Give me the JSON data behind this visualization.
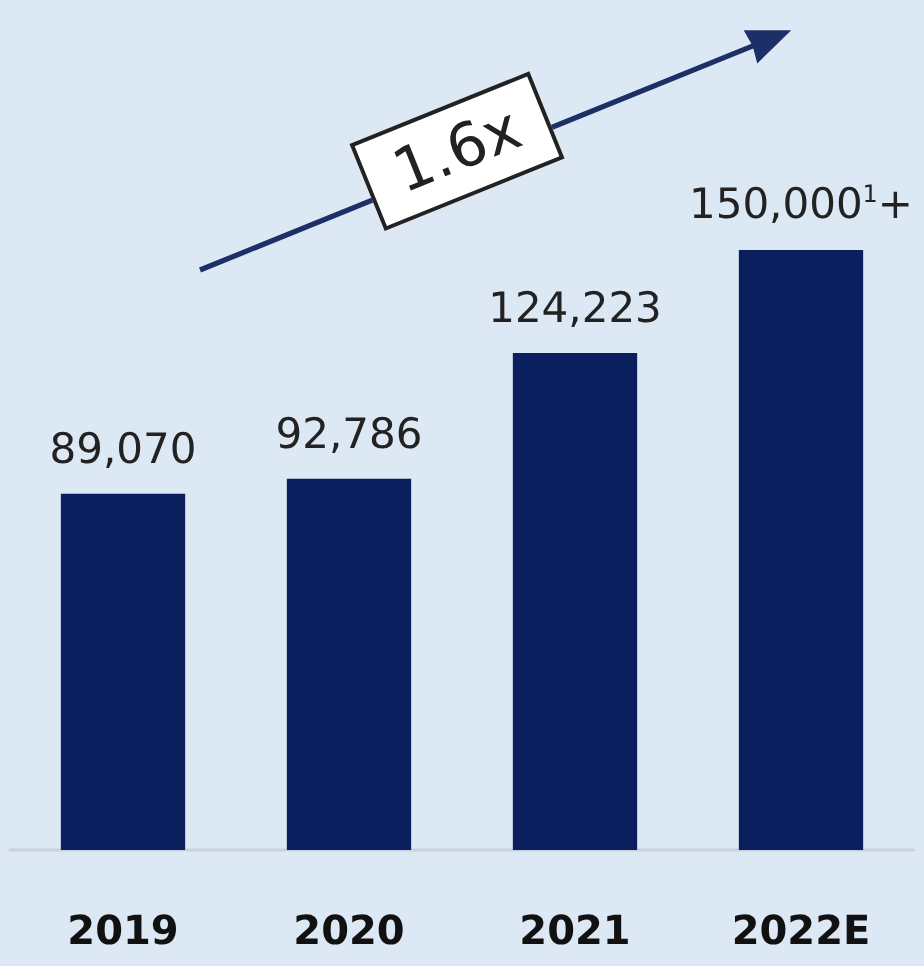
{
  "chart_data": {
    "type": "bar",
    "categories": [
      "2019",
      "2020",
      "2021",
      "2022E"
    ],
    "values": [
      89070,
      92786,
      124223,
      150000
    ],
    "value_labels": [
      "89,070",
      "92,786",
      "124,223",
      "150,000$^{1}$+"
    ],
    "color": "#0b1f5e",
    "annotations": [
      "1.6x"
    ]
  }
}
